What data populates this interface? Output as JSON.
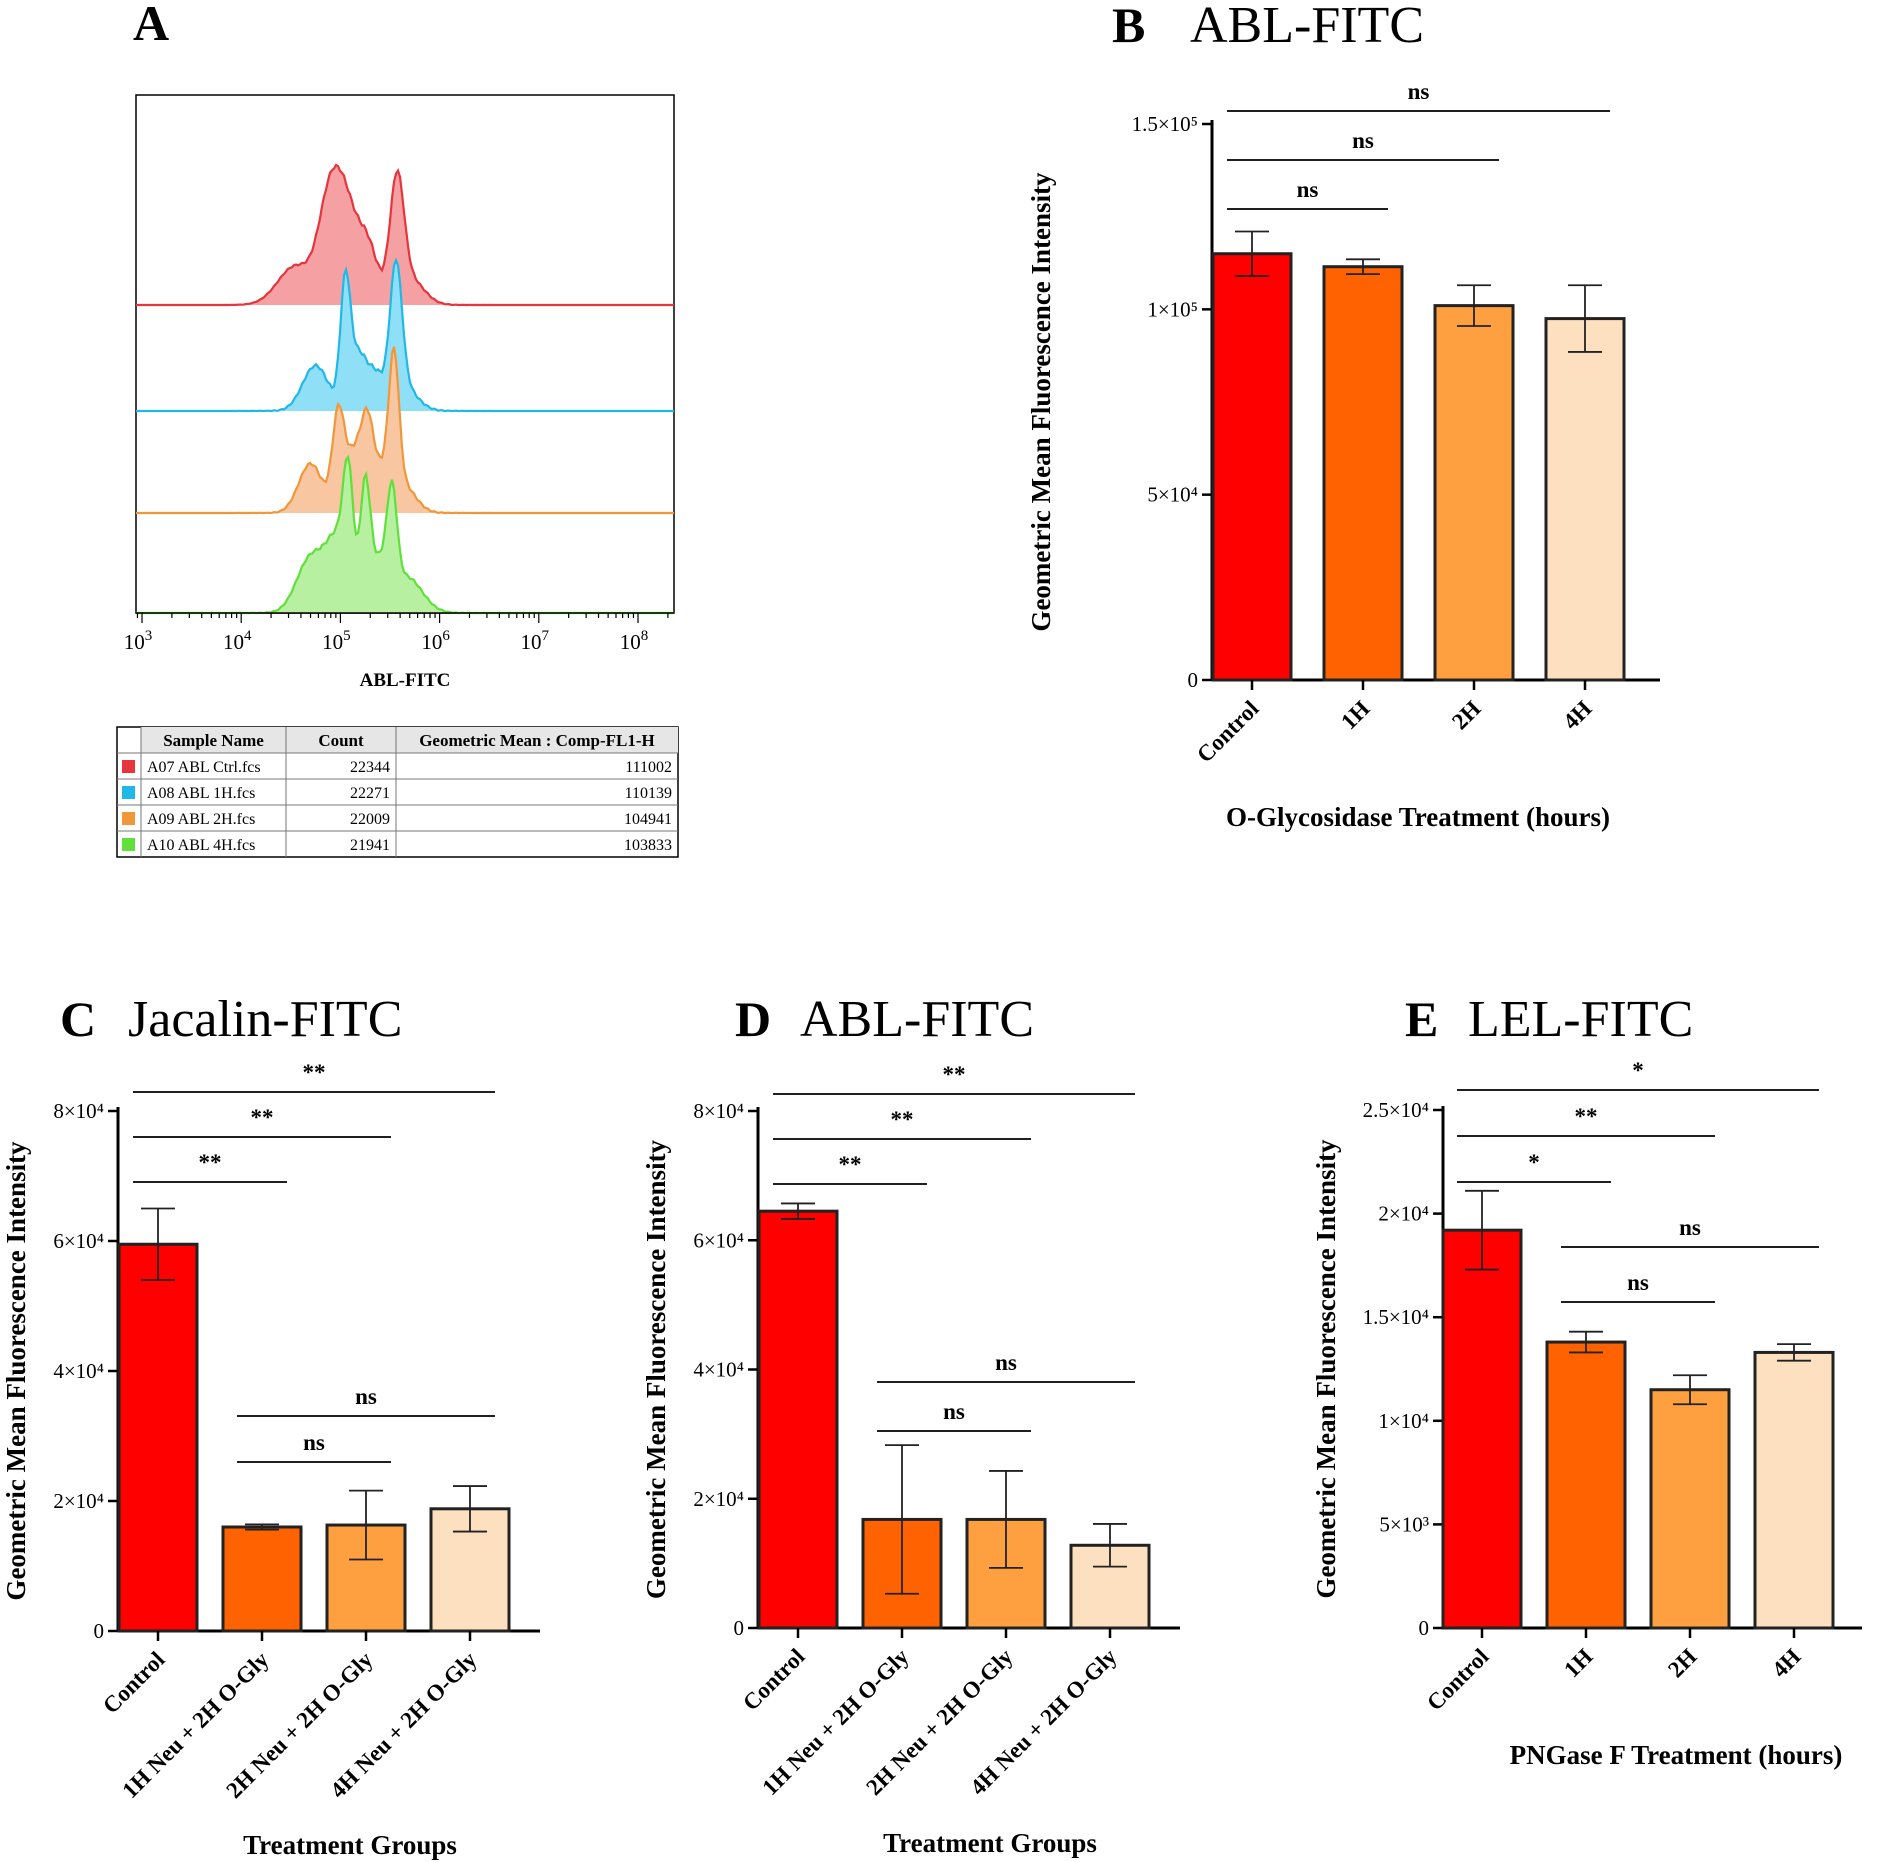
{
  "chart_data": [
    {
      "panel": "A",
      "type": "histogram",
      "xlabel": "ABL-FITC",
      "x_scale": "log",
      "x_ticks": [
        "10^3",
        "10^4",
        "10^5",
        "10^6",
        "10^7",
        "10^8"
      ],
      "x_tick_base": "10",
      "x_tick_exps": [
        "3",
        "4",
        "5",
        "6",
        "7",
        "8"
      ],
      "series": [
        {
          "name": "A07 ABL Ctrl.fcs",
          "color": "#e8343c",
          "fill": "#f5a0a3"
        },
        {
          "name": "A08 ABL 1H.fcs",
          "color": "#1fb8e8",
          "fill": "#8fe0f7"
        },
        {
          "name": "A09 ABL 2H.fcs",
          "color": "#f2963a",
          "fill": "#f8c6a0"
        },
        {
          "name": "A10 ABL 4H.fcs",
          "color": "#5fe03a",
          "fill": "#b6f0a0"
        }
      ],
      "table": {
        "headers": [
          "Sample Name",
          "Count",
          "Geometric Mean : Comp-FL1-H"
        ],
        "rows": [
          {
            "sample": "A07 ABL Ctrl.fcs",
            "count": "22344",
            "gmean": "111002",
            "color": "#e8343c"
          },
          {
            "sample": "A08 ABL 1H.fcs",
            "count": "22271",
            "gmean": "110139",
            "color": "#1fb8e8"
          },
          {
            "sample": "A09 ABL 2H.fcs",
            "count": "22009",
            "gmean": "104941",
            "color": "#f2963a"
          },
          {
            "sample": "A10 ABL 4H.fcs",
            "count": "21941",
            "gmean": "103833",
            "color": "#5fe03a"
          }
        ]
      }
    },
    {
      "panel": "B",
      "title": "ABL-FITC",
      "type": "bar",
      "categories": [
        "Control",
        "1H",
        "2H",
        "4H"
      ],
      "values": [
        115000,
        111500,
        101000,
        97500
      ],
      "errors": [
        6000,
        2000,
        5500,
        9000
      ],
      "ylim": [
        0,
        150000
      ],
      "yticks": [
        {
          "v": 0,
          "label": "0"
        },
        {
          "v": 50000,
          "label": "5×10⁴"
        },
        {
          "v": 100000,
          "label": "1×10⁵"
        },
        {
          "v": 150000,
          "label": "1.5×10⁵"
        }
      ],
      "ylabel": "Geometric Mean Fluorescence Intensity",
      "xlabel": "O-Glycosidase Treatment (hours)",
      "colors": [
        "#fe0000",
        "#ff6200",
        "#ffa040",
        "#fde0c0"
      ],
      "significance": [
        {
          "from": 0,
          "to": 1,
          "label": "ns",
          "level": 1
        },
        {
          "from": 0,
          "to": 2,
          "label": "ns",
          "level": 2
        },
        {
          "from": 0,
          "to": 3,
          "label": "ns",
          "level": 3
        }
      ]
    },
    {
      "panel": "C",
      "title": "Jacalin-FITC",
      "type": "bar",
      "categories": [
        "Control",
        "1H Neu + 2H O-Gly",
        "2H Neu + 2H O-Gly",
        "4H Neu + 2H O-Gly"
      ],
      "values": [
        59500,
        16000,
        16300,
        18800
      ],
      "errors": [
        5500,
        400,
        5300,
        3500
      ],
      "ylim": [
        0,
        80000
      ],
      "yticks": [
        {
          "v": 0,
          "label": "0"
        },
        {
          "v": 20000,
          "label": "2×10⁴"
        },
        {
          "v": 40000,
          "label": "4×10⁴"
        },
        {
          "v": 60000,
          "label": "6×10⁴"
        },
        {
          "v": 80000,
          "label": "8×10⁴"
        }
      ],
      "ylabel": "Geometric Mean Fluorescence Intensity",
      "xlabel": "Treatment Groups",
      "colors": [
        "#fe0000",
        "#ff6200",
        "#ffa040",
        "#fde0c0"
      ],
      "significance": [
        {
          "from": 0,
          "to": 1,
          "label": "**",
          "level": 1
        },
        {
          "from": 0,
          "to": 2,
          "label": "**",
          "level": 2
        },
        {
          "from": 0,
          "to": 3,
          "label": "**",
          "level": 3
        },
        {
          "from": 1,
          "to": 2,
          "label": "ns",
          "level": -2
        },
        {
          "from": 1,
          "to": 3,
          "label": "ns",
          "level": -1
        }
      ]
    },
    {
      "panel": "D",
      "title": "ABL-FITC",
      "type": "bar",
      "categories": [
        "Control",
        "1H Neu + 2H O-Gly",
        "2H Neu + 2H O-Gly",
        "4H Neu + 2H O-Gly"
      ],
      "values": [
        64500,
        16800,
        16800,
        12800
      ],
      "errors": [
        1200,
        11500,
        7500,
        3300
      ],
      "ylim": [
        0,
        80000
      ],
      "yticks": [
        {
          "v": 0,
          "label": "0"
        },
        {
          "v": 20000,
          "label": "2×10⁴"
        },
        {
          "v": 40000,
          "label": "4×10⁴"
        },
        {
          "v": 60000,
          "label": "6×10⁴"
        },
        {
          "v": 80000,
          "label": "8×10⁴"
        }
      ],
      "ylabel": "Geometric Mean Fluorescence Intensity",
      "xlabel": "Treatment Groups",
      "colors": [
        "#fe0000",
        "#ff6200",
        "#ffa040",
        "#fde0c0"
      ],
      "significance": [
        {
          "from": 0,
          "to": 1,
          "label": "**",
          "level": 1
        },
        {
          "from": 0,
          "to": 2,
          "label": "**",
          "level": 2
        },
        {
          "from": 0,
          "to": 3,
          "label": "**",
          "level": 3
        },
        {
          "from": 1,
          "to": 2,
          "label": "ns",
          "level": -2
        },
        {
          "from": 1,
          "to": 3,
          "label": "ns",
          "level": -1
        }
      ]
    },
    {
      "panel": "E",
      "title": "LEL-FITC",
      "type": "bar",
      "categories": [
        "Control",
        "1H",
        "2H",
        "4H"
      ],
      "values": [
        19200,
        13800,
        11500,
        13300
      ],
      "errors": [
        1900,
        500,
        700,
        400
      ],
      "ylim": [
        0,
        25000
      ],
      "yticks": [
        {
          "v": 0,
          "label": "0"
        },
        {
          "v": 5000,
          "label": "5×10³"
        },
        {
          "v": 10000,
          "label": "1×10⁴"
        },
        {
          "v": 15000,
          "label": "1.5×10⁴"
        },
        {
          "v": 20000,
          "label": "2×10⁴"
        },
        {
          "v": 25000,
          "label": "2.5×10⁴"
        }
      ],
      "ylabel": "Geometric Mean Fluorescence Intensity",
      "xlabel": "PNGase F Treatment (hours)",
      "colors": [
        "#fe0000",
        "#ff6200",
        "#ffa040",
        "#fde0c0"
      ],
      "significance": [
        {
          "from": 0,
          "to": 1,
          "label": "*",
          "level": 1
        },
        {
          "from": 0,
          "to": 2,
          "label": "**",
          "level": 2
        },
        {
          "from": 0,
          "to": 3,
          "label": "*",
          "level": 3
        },
        {
          "from": 1,
          "to": 2,
          "label": "ns",
          "level": -2
        },
        {
          "from": 1,
          "to": 3,
          "label": "ns",
          "level": -1
        }
      ]
    }
  ]
}
